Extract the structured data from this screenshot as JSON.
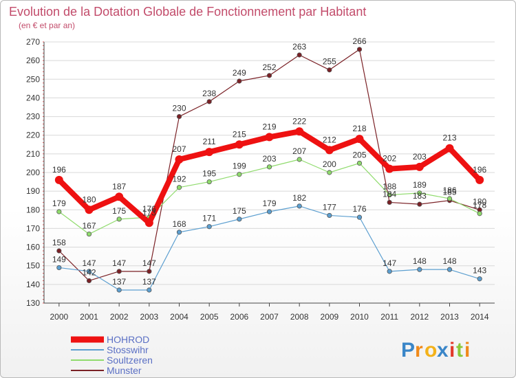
{
  "chart_data": {
    "type": "line",
    "title": "Evolution de la Dotation Globale de Fonctionnement par Habitant",
    "subtitle": "(en € et par an)",
    "categories": [
      "2000",
      "2001",
      "2002",
      "2003",
      "2004",
      "2005",
      "2006",
      "2007",
      "2008",
      "2009",
      "2010",
      "2011",
      "2012",
      "2013",
      "2014"
    ],
    "ylim": [
      130,
      270
    ],
    "yticks": [
      130,
      140,
      150,
      160,
      170,
      180,
      190,
      200,
      210,
      220,
      230,
      240,
      250,
      260,
      270
    ],
    "grid": "horizontal",
    "legend_position": "bottom-left",
    "series": [
      {
        "name": "Munster",
        "color": "#7a2025",
        "values": [
          158,
          142,
          147,
          147,
          230,
          238,
          249,
          252,
          263,
          255,
          266,
          184,
          183,
          185,
          180
        ]
      },
      {
        "name": "Stosswihr",
        "color": "#5c9fd0",
        "values": [
          149,
          147,
          137,
          137,
          168,
          171,
          175,
          179,
          182,
          177,
          176,
          147,
          148,
          148,
          143
        ]
      },
      {
        "name": "Soultzeren",
        "color": "#8fdb6c",
        "values": [
          179,
          167,
          175,
          176,
          192,
          195,
          199,
          203,
          207,
          200,
          205,
          188,
          189,
          186,
          178
        ]
      },
      {
        "name": "HOHROD",
        "color": "#ee1111",
        "values": [
          196,
          180,
          187,
          173,
          207,
          211,
          215,
          219,
          222,
          212,
          218,
          202,
          203,
          213,
          196
        ]
      }
    ]
  },
  "legend": {
    "items": [
      "HOHROD",
      "Stosswihr",
      "Soultzeren",
      "Munster"
    ]
  },
  "logo": {
    "letters": [
      "P",
      "r",
      "o",
      "x",
      "i",
      "t",
      "i"
    ],
    "colors": [
      "#3a86c8",
      "#f08a1a",
      "#f3b21a",
      "#3a86c8",
      "#e23a2a",
      "#8cc83a",
      "#f08a1a"
    ]
  }
}
